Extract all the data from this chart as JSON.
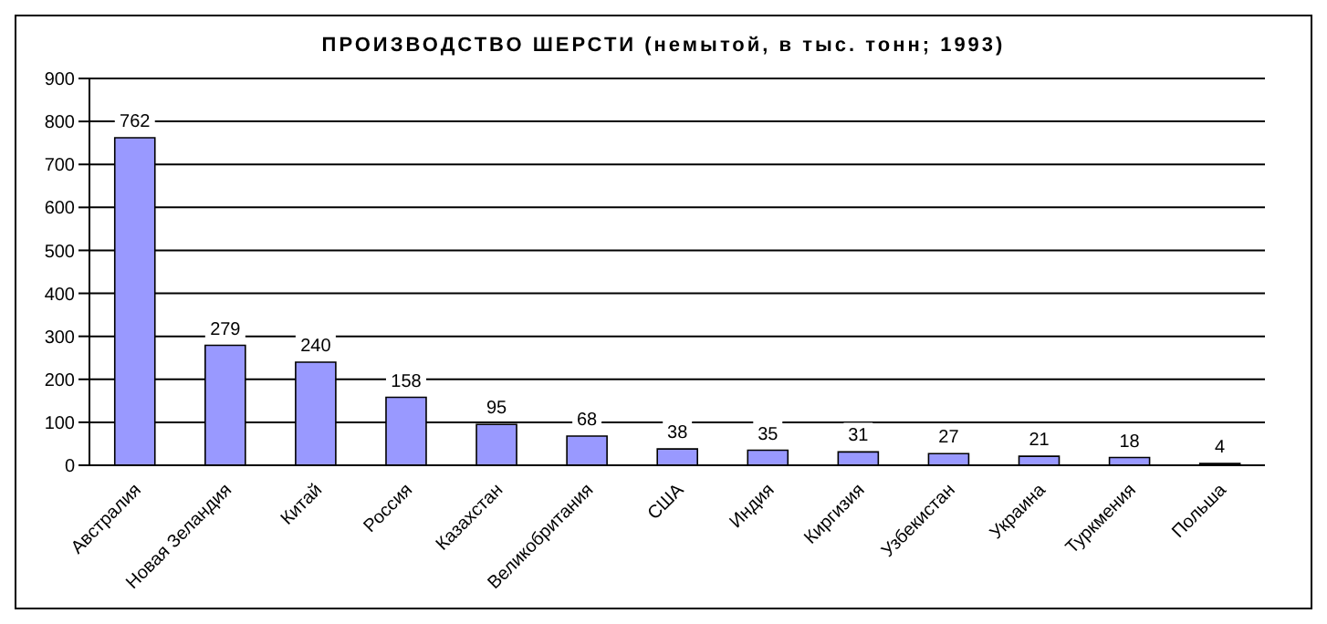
{
  "chart_data": {
    "type": "bar",
    "title": "ПРОИЗВОДСТВО ШЕРСТИ (немытой, в тыс. тонн; 1993)",
    "categories": [
      "Австралия",
      "Новая Зеландия",
      "Китай",
      "Россия",
      "Казахстан",
      "Великобритания",
      "США",
      "Индия",
      "Киргизия",
      "Узбекистан",
      "Украина",
      "Туркмения",
      "Польша"
    ],
    "values": [
      762,
      279,
      240,
      158,
      95,
      68,
      38,
      35,
      31,
      27,
      21,
      18,
      4
    ],
    "color": "#9999ff",
    "ylim": [
      0,
      900
    ],
    "yticks": [
      0,
      100,
      200,
      300,
      400,
      500,
      600,
      700,
      800,
      900
    ],
    "grid": "y",
    "data_labels": true
  }
}
